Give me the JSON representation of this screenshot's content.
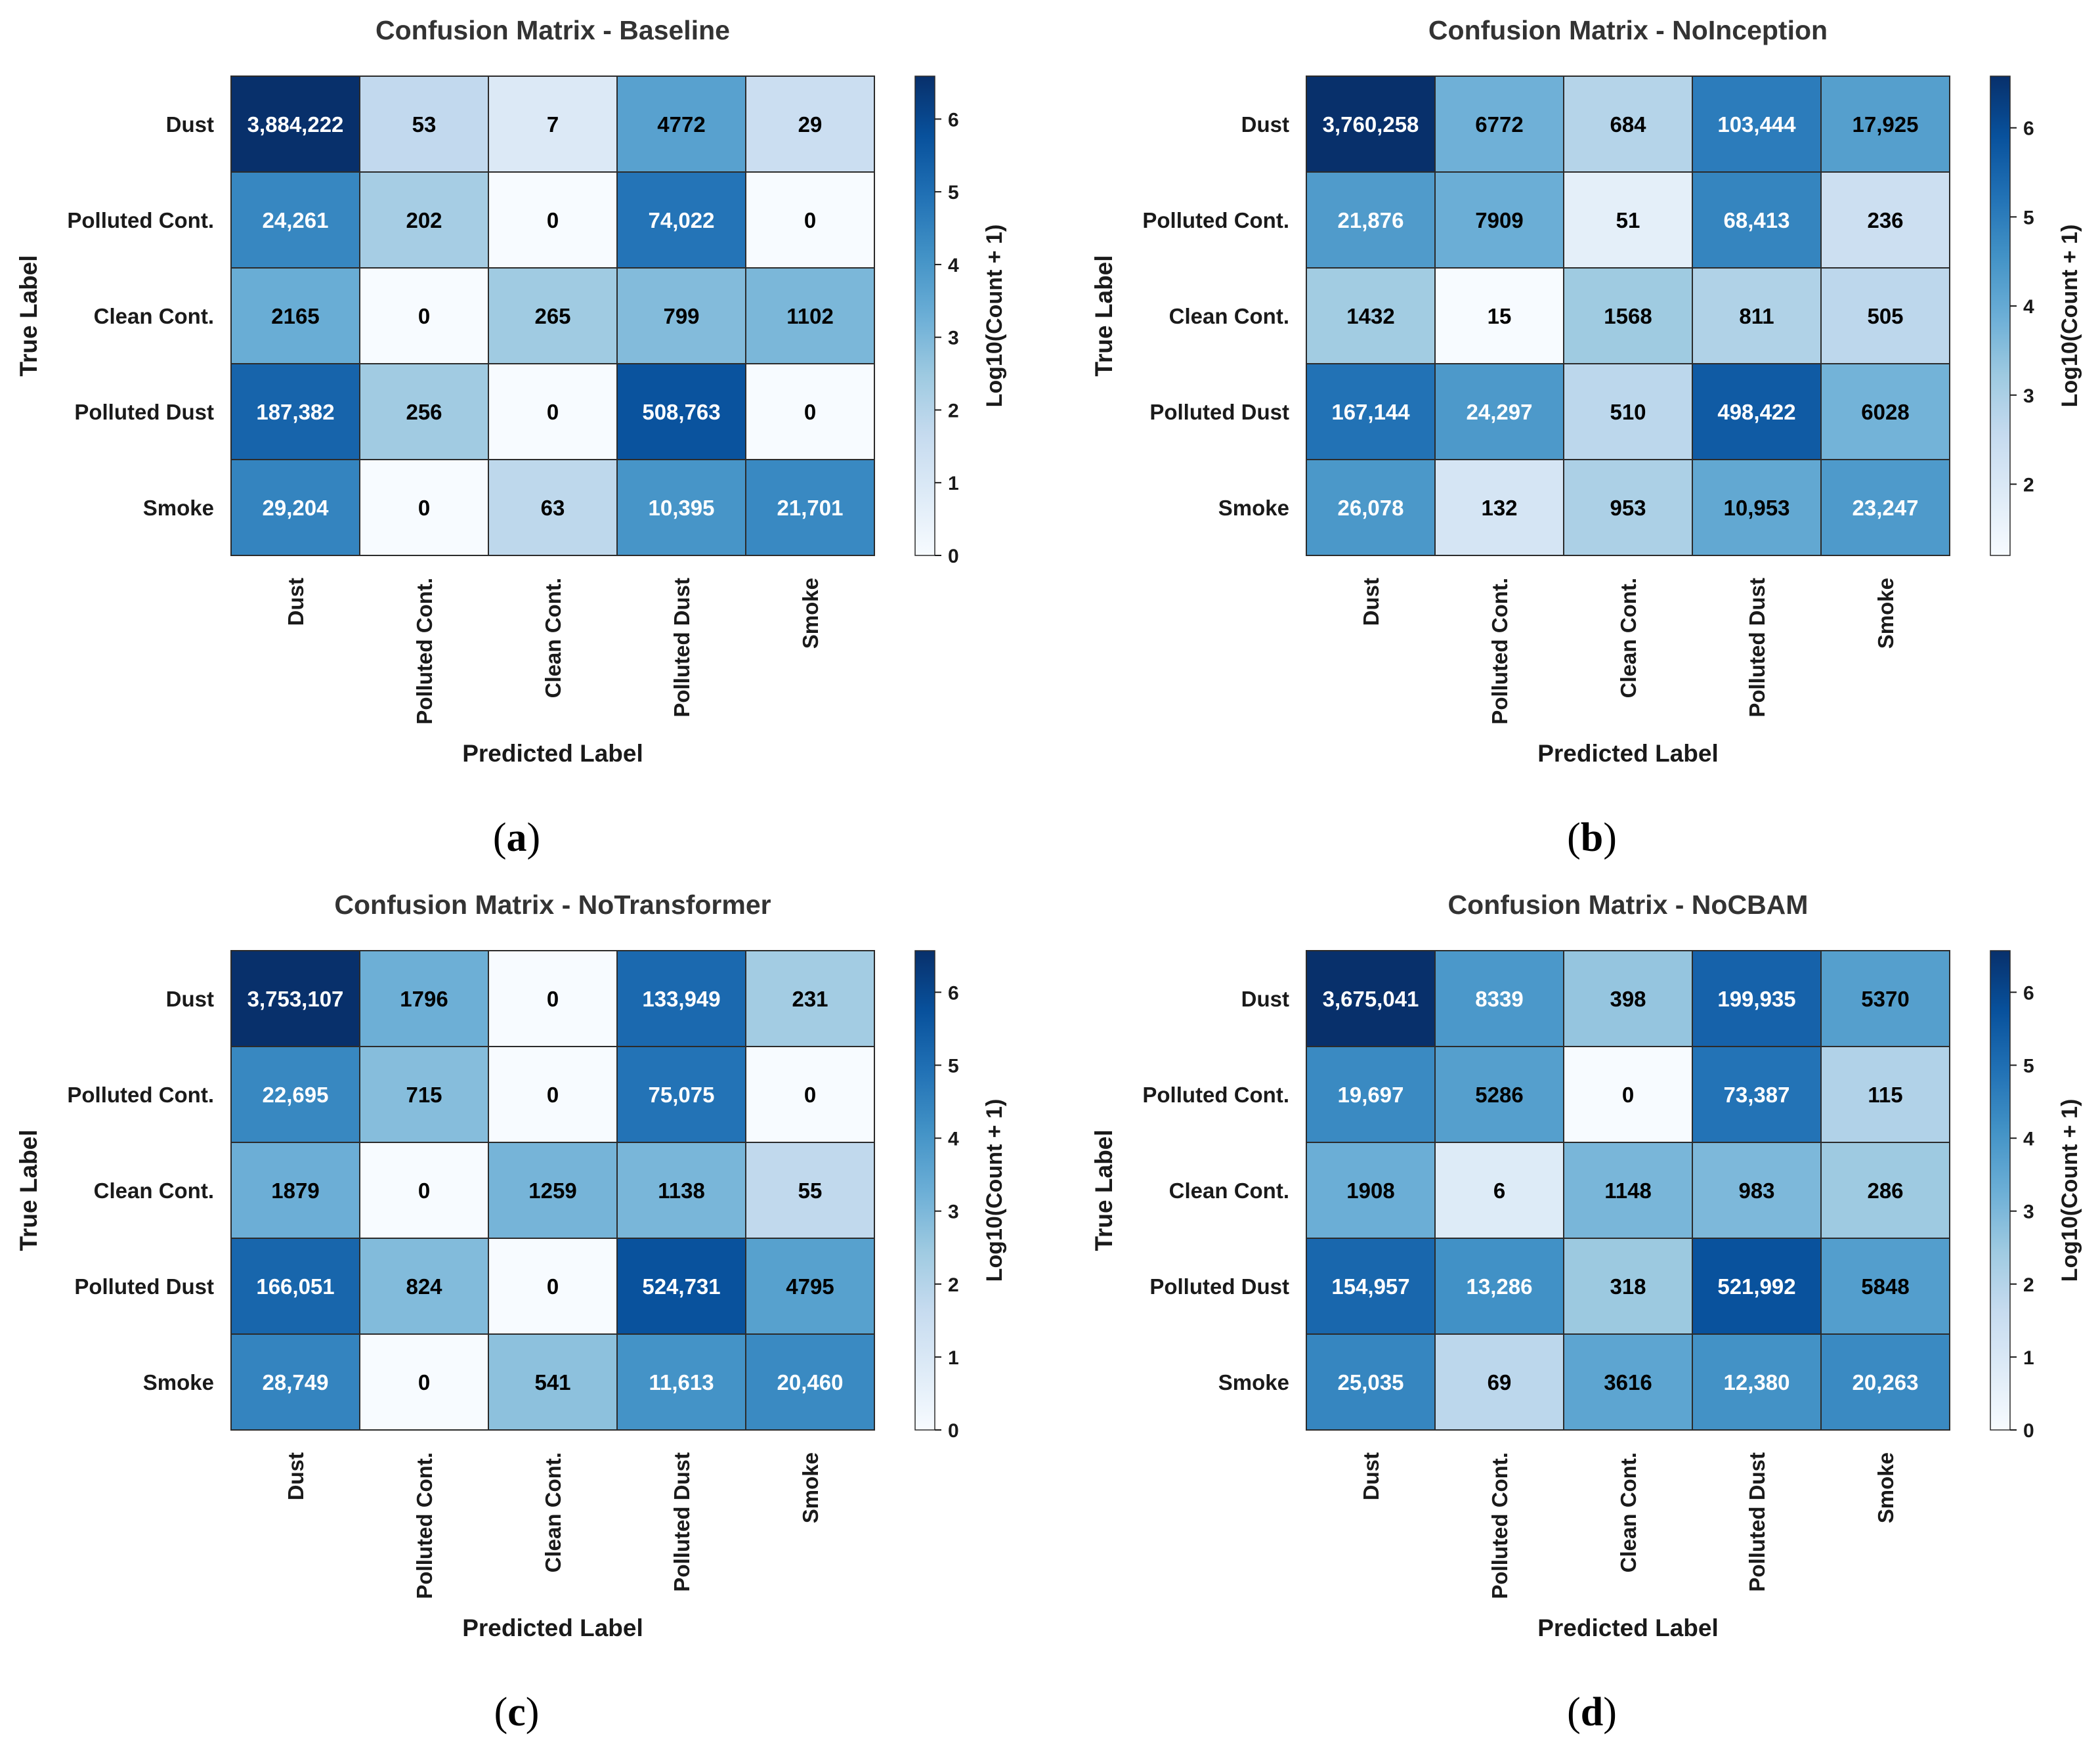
{
  "chart_data": [
    {
      "type": "heatmap",
      "title": "Confusion Matrix - Baseline",
      "caption": "(a)",
      "xlabel": "Predicted Label",
      "ylabel": "True Label",
      "x_categories": [
        "Dust",
        "Polluted Cont.",
        "Clean Cont.",
        "Polluted Dust",
        "Smoke"
      ],
      "y_categories": [
        "Dust",
        "Polluted Cont.",
        "Clean Cont.",
        "Polluted Dust",
        "Smoke"
      ],
      "values": [
        [
          3884222,
          53,
          7,
          4772,
          29
        ],
        [
          24261,
          202,
          0,
          74022,
          0
        ],
        [
          2165,
          0,
          265,
          799,
          1102
        ],
        [
          187382,
          256,
          0,
          508763,
          0
        ],
        [
          29204,
          0,
          63,
          10395,
          21701
        ]
      ],
      "labels": [
        [
          "3,884,222",
          "53",
          "7",
          "4772",
          "29"
        ],
        [
          "24,261",
          "202",
          "0",
          "74,022",
          "0"
        ],
        [
          "2165",
          "0",
          "265",
          "799",
          "1102"
        ],
        [
          "187,382",
          "256",
          "0",
          "508,763",
          "0"
        ],
        [
          "29,204",
          "0",
          "63",
          "10,395",
          "21,701"
        ]
      ],
      "colorbar": {
        "label": "Log10(Count + 1)",
        "range": [
          0,
          6.59
        ],
        "ticks": [
          0,
          1,
          2,
          3,
          4,
          5,
          6
        ],
        "tick_labels": [
          "0",
          "1",
          "2",
          "3",
          "4",
          "5",
          "6"
        ]
      }
    },
    {
      "type": "heatmap",
      "title": "Confusion Matrix - NoInception",
      "caption": "(b)",
      "xlabel": "Predicted Label",
      "ylabel": "True Label",
      "x_categories": [
        "Dust",
        "Polluted Cont.",
        "Clean Cont.",
        "Polluted Dust",
        "Smoke"
      ],
      "y_categories": [
        "Dust",
        "Polluted Cont.",
        "Clean Cont.",
        "Polluted Dust",
        "Smoke"
      ],
      "values": [
        [
          3760258,
          6772,
          684,
          103444,
          17925
        ],
        [
          21876,
          7909,
          51,
          68413,
          236
        ],
        [
          1432,
          15,
          1568,
          811,
          505
        ],
        [
          167144,
          24297,
          510,
          498422,
          6028
        ],
        [
          26078,
          132,
          953,
          10953,
          23247
        ]
      ],
      "labels": [
        [
          "3,760,258",
          "6772",
          "684",
          "103,444",
          "17,925"
        ],
        [
          "21,876",
          "7909",
          "51",
          "68,413",
          "236"
        ],
        [
          "1432",
          "15",
          "1568",
          "811",
          "505"
        ],
        [
          "167,144",
          "24,297",
          "510",
          "498,422",
          "6028"
        ],
        [
          "26,078",
          "132",
          "953",
          "10,953",
          "23,247"
        ]
      ],
      "colorbar": {
        "label": "Log10(Count + 1)",
        "range": [
          1.2,
          6.58
        ],
        "ticks": [
          2,
          3,
          4,
          5,
          6
        ],
        "tick_labels": [
          "2",
          "3",
          "4",
          "5",
          "6"
        ]
      }
    },
    {
      "type": "heatmap",
      "title": "Confusion Matrix - NoTransformer",
      "caption": "(c)",
      "xlabel": "Predicted Label",
      "ylabel": "True Label",
      "x_categories": [
        "Dust",
        "Polluted Cont.",
        "Clean Cont.",
        "Polluted Dust",
        "Smoke"
      ],
      "y_categories": [
        "Dust",
        "Polluted Cont.",
        "Clean Cont.",
        "Polluted Dust",
        "Smoke"
      ],
      "values": [
        [
          3753107,
          1796,
          0,
          133949,
          231
        ],
        [
          22695,
          715,
          0,
          75075,
          0
        ],
        [
          1879,
          0,
          1259,
          1138,
          55
        ],
        [
          166051,
          824,
          0,
          524731,
          4795
        ],
        [
          28749,
          0,
          541,
          11613,
          20460
        ]
      ],
      "labels": [
        [
          "3,753,107",
          "1796",
          "0",
          "133,949",
          "231"
        ],
        [
          "22,695",
          "715",
          "0",
          "75,075",
          "0"
        ],
        [
          "1879",
          "0",
          "1259",
          "1138",
          "55"
        ],
        [
          "166,051",
          "824",
          "0",
          "524,731",
          "4795"
        ],
        [
          "28,749",
          "0",
          "541",
          "11,613",
          "20,460"
        ]
      ],
      "colorbar": {
        "label": "Log10(Count + 1)",
        "range": [
          0,
          6.57
        ],
        "ticks": [
          0,
          1,
          2,
          3,
          4,
          5,
          6
        ],
        "tick_labels": [
          "0",
          "1",
          "2",
          "3",
          "4",
          "5",
          "6"
        ]
      }
    },
    {
      "type": "heatmap",
      "title": "Confusion Matrix - NoCBAM",
      "caption": "(d)",
      "xlabel": "Predicted Label",
      "ylabel": "True Label",
      "x_categories": [
        "Dust",
        "Polluted Cont.",
        "Clean Cont.",
        "Polluted Dust",
        "Smoke"
      ],
      "y_categories": [
        "Dust",
        "Polluted Cont.",
        "Clean Cont.",
        "Polluted Dust",
        "Smoke"
      ],
      "values": [
        [
          3675041,
          8339,
          398,
          199935,
          5370
        ],
        [
          19697,
          5286,
          0,
          73387,
          115
        ],
        [
          1908,
          6,
          1148,
          983,
          286
        ],
        [
          154957,
          13286,
          318,
          521992,
          5848
        ],
        [
          25035,
          69,
          3616,
          12380,
          20263
        ]
      ],
      "labels": [
        [
          "3,675,041",
          "8339",
          "398",
          "199,935",
          "5370"
        ],
        [
          "19,697",
          "5286",
          "0",
          "73,387",
          "115"
        ],
        [
          "1908",
          "6",
          "1148",
          "983",
          "286"
        ],
        [
          "154,957",
          "13,286",
          "318",
          "521,992",
          "5848"
        ],
        [
          "25,035",
          "69",
          "3616",
          "12,380",
          "20,263"
        ]
      ],
      "colorbar": {
        "label": "Log10(Count + 1)",
        "range": [
          0,
          6.57
        ],
        "ticks": [
          0,
          1,
          2,
          3,
          4,
          5,
          6
        ],
        "tick_labels": [
          "0",
          "1",
          "2",
          "3",
          "4",
          "5",
          "6"
        ]
      }
    }
  ]
}
